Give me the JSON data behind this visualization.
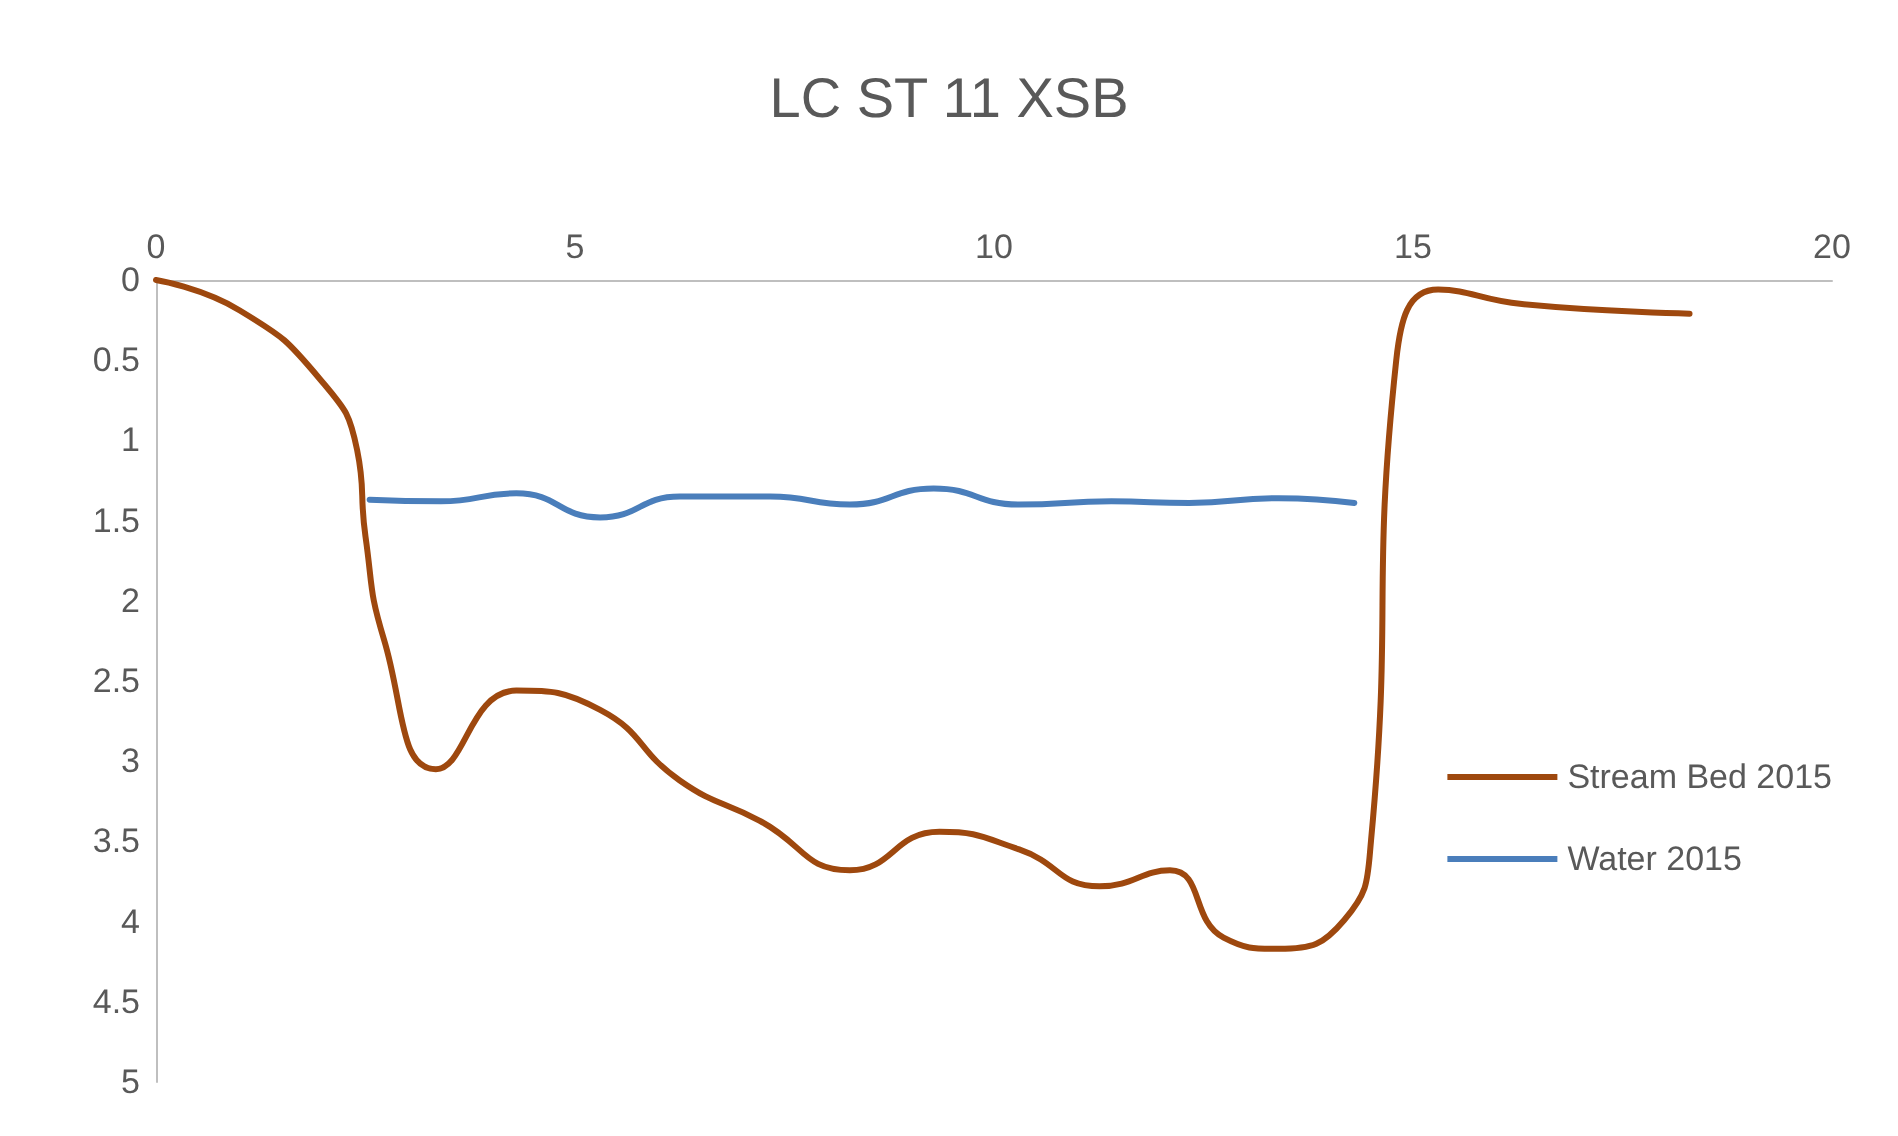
{
  "chart_data": {
    "type": "line",
    "title": "LC ST 11 XSB",
    "xlim": [
      0,
      20
    ],
    "xticks": [
      0,
      5,
      10,
      15,
      20
    ],
    "ylim": [
      5,
      0
    ],
    "yticks": [
      0,
      0.5,
      1,
      1.5,
      2,
      2.5,
      3,
      3.5,
      4,
      4.5,
      5
    ],
    "grid": false,
    "legend": "right",
    "marker": "none",
    "line_style": "solid",
    "series": [
      {
        "name": "Stream Bed 2015",
        "color": "#9e480e",
        "x": [
          0,
          1,
          1.96,
          2.4,
          2.5,
          2.72,
          3.34,
          4.3,
          5.3,
          6.25,
          7.2,
          8.28,
          9.35,
          10.3,
          11.26,
          12.1,
          12.74,
          13.4,
          14.18,
          14.5,
          14.8,
          15.3,
          16.3,
          18.3
        ],
        "values": [
          0,
          0.19,
          0.62,
          1.06,
          1.6,
          2.24,
          3.05,
          2.56,
          2.68,
          3.12,
          3.37,
          3.68,
          3.44,
          3.55,
          3.78,
          3.68,
          4.1,
          4.17,
          3.99,
          3.49,
          0.5,
          0.06,
          0.15,
          0.21
        ]
      },
      {
        "name": "Water 2015",
        "color": "#4a7ebb",
        "x": [
          2.55,
          3.4,
          4.3,
          5.3,
          6.25,
          7.33,
          8.28,
          9.28,
          10.3,
          11.4,
          12.33,
          13.4,
          14.3
        ],
        "values": [
          1.37,
          1.38,
          1.33,
          1.48,
          1.35,
          1.35,
          1.4,
          1.3,
          1.4,
          1.38,
          1.39,
          1.36,
          1.39
        ]
      }
    ]
  }
}
